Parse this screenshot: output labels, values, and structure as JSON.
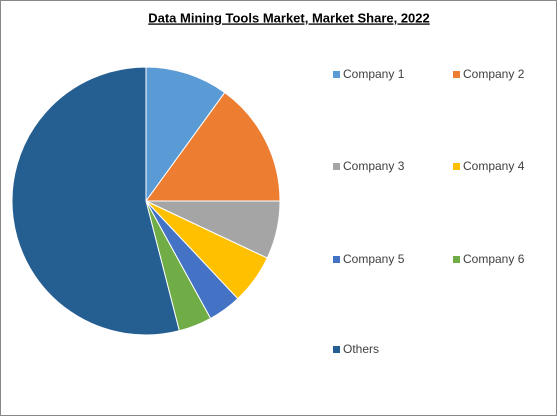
{
  "chart_data": {
    "type": "pie",
    "title": "Data Mining Tools Market, Market Share, 2022",
    "categories": [
      "Company 1",
      "Company 2",
      "Company 3",
      "Company 4",
      "Company 5",
      "Company 6",
      "Others"
    ],
    "values": [
      10,
      15,
      7,
      6,
      4,
      4,
      54
    ],
    "colors": [
      "#5b9bd5",
      "#ed7d31",
      "#a5a5a5",
      "#ffc000",
      "#4472c4",
      "#70ad47",
      "#255e91"
    ]
  }
}
